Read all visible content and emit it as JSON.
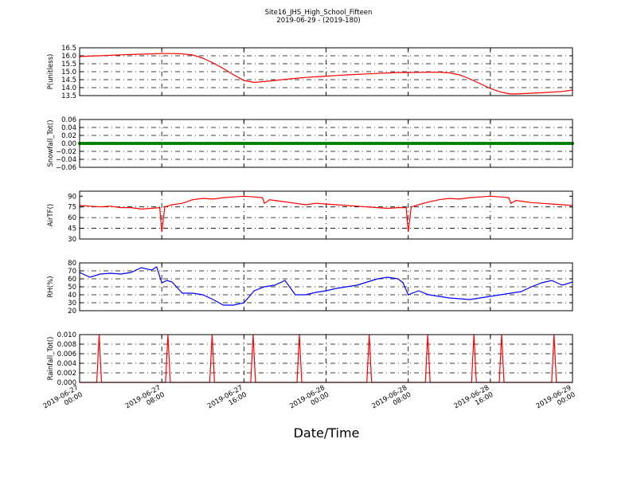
{
  "chart_data": {
    "title": "Site16_JHS_High_School_Fifteen",
    "subtitle": "2019-06-29 - (2019-180)",
    "xlabel": "Date/Time",
    "x_ticks": [
      "2019-06-27 00:00",
      "2019-06-27 08:00",
      "2019-06-27 16:00",
      "2019-06-28 00:00",
      "2019-06-28 08:00",
      "2019-06-28 16:00",
      "2019-06-29 00:00"
    ],
    "x_tick_lines": [
      [
        "2019-06-27",
        "00:00"
      ],
      [
        "2019-06-27",
        "08:00"
      ],
      [
        "2019-06-27",
        "16:00"
      ],
      [
        "2019-06-28",
        "00:00"
      ],
      [
        "2019-06-28",
        "08:00"
      ],
      [
        "2019-06-28",
        "16:00"
      ],
      [
        "2019-06-29",
        "00:00"
      ]
    ],
    "x_range_hours": [
      0,
      48
    ],
    "grid": true,
    "panels": [
      {
        "type": "line",
        "ylabel": "P(unitless)",
        "color": "#ff0000",
        "ylim": [
          13.5,
          16.5
        ],
        "yticks": [
          "13.5",
          "14.0",
          "14.5",
          "15.0",
          "15.5",
          "16.0",
          "16.5"
        ],
        "x": [
          0,
          1,
          2,
          3,
          4,
          5,
          6,
          7,
          8,
          9,
          10,
          11,
          12,
          13,
          14,
          15,
          16,
          17,
          18,
          19,
          20,
          21,
          22,
          23,
          24,
          25,
          26,
          27,
          28,
          29,
          30,
          31,
          32,
          33,
          34,
          35,
          36,
          37,
          38,
          39,
          40,
          41,
          42,
          43,
          44,
          45,
          46,
          47,
          48
        ],
        "values": [
          15.95,
          15.98,
          16.0,
          16.03,
          16.06,
          16.08,
          16.1,
          16.12,
          16.14,
          16.14,
          16.12,
          16.05,
          15.85,
          15.55,
          15.2,
          14.8,
          14.45,
          14.33,
          14.38,
          14.45,
          14.52,
          14.58,
          14.64,
          14.68,
          14.72,
          14.76,
          14.8,
          14.83,
          14.86,
          14.89,
          14.92,
          14.95,
          14.95,
          14.96,
          14.97,
          14.97,
          14.93,
          14.8,
          14.55,
          14.25,
          13.95,
          13.72,
          13.6,
          13.62,
          13.65,
          13.68,
          13.72,
          13.76,
          13.85
        ]
      },
      {
        "type": "scatter",
        "ylabel": "Snowfall_Tot()",
        "color": "#008000",
        "ylim": [
          -0.06,
          0.06
        ],
        "yticks": [
          "−0.06",
          "−0.04",
          "−0.02",
          "0.00",
          "0.02",
          "0.04",
          "0.06"
        ],
        "constant_value": 0.0,
        "point_interval_minutes": 10
      },
      {
        "type": "line",
        "ylabel": "AirTF()",
        "color": "#ff0000",
        "ylim": [
          30,
          97
        ],
        "yticks": [
          "30",
          "45",
          "60",
          "75",
          "90"
        ],
        "x": [
          0,
          1,
          2,
          3,
          4,
          5,
          6,
          7,
          7.8,
          8.0,
          8.3,
          9,
          10,
          11,
          12,
          13,
          14,
          15,
          16,
          17,
          17.8,
          18.0,
          18.5,
          19,
          20,
          21,
          22,
          23,
          24,
          25,
          26,
          27,
          28,
          29,
          30,
          31,
          31.8,
          32.0,
          32.3,
          33,
          34,
          35,
          36,
          37,
          38,
          39,
          40,
          41,
          41.8,
          42.0,
          42.5,
          43,
          44,
          45,
          46,
          47,
          48
        ],
        "values": [
          77,
          76,
          75,
          76,
          74,
          74,
          72,
          73,
          74,
          40,
          75,
          78,
          80,
          85,
          87,
          86,
          88,
          89,
          90,
          89,
          88,
          80,
          85,
          84,
          82,
          80,
          78,
          80,
          79,
          78,
          77,
          76,
          75,
          74,
          73,
          74,
          74,
          40,
          75,
          78,
          82,
          85,
          87,
          86,
          88,
          89,
          90,
          89,
          88,
          80,
          84,
          83,
          81,
          80,
          79,
          78,
          77
        ]
      },
      {
        "type": "line",
        "ylabel": "RH(%)",
        "color": "#0000ff",
        "ylim": [
          20,
          80
        ],
        "yticks": [
          "20",
          "30",
          "40",
          "50",
          "60",
          "70",
          "80"
        ],
        "x": [
          0,
          1,
          2,
          3,
          4,
          5,
          6,
          7,
          7.5,
          8,
          8.5,
          9,
          10,
          11,
          12,
          13,
          14,
          15,
          16,
          17,
          18,
          19,
          20,
          21,
          22,
          23,
          24,
          25,
          26,
          27,
          28,
          29,
          30,
          31,
          31.5,
          32,
          33,
          34,
          35,
          36,
          37,
          38,
          39,
          40,
          41,
          42,
          43,
          44,
          45,
          46,
          47,
          48
        ],
        "values": [
          68,
          62,
          66,
          67,
          66,
          68,
          74,
          71,
          75,
          55,
          58,
          56,
          42,
          42,
          40,
          34,
          27,
          27,
          30,
          45,
          50,
          52,
          58,
          40,
          40,
          43,
          45,
          48,
          50,
          52,
          56,
          60,
          62,
          60,
          55,
          40,
          45,
          40,
          38,
          36,
          35,
          34,
          36,
          38,
          40,
          42,
          44,
          50,
          55,
          58,
          52,
          56
        ]
      },
      {
        "type": "line",
        "ylabel": "Rainfall_Tot()",
        "color": "#ff0000",
        "ylim": [
          0.0,
          0.01
        ],
        "yticks": [
          "0.000",
          "0.002",
          "0.004",
          "0.006",
          "0.008",
          "0.010"
        ],
        "spike_hours": [
          1.9,
          8.6,
          12.9,
          16.9,
          21.4,
          28.2,
          33.9,
          38.4,
          41.1,
          46.2
        ],
        "spike_value": 0.01
      }
    ]
  }
}
